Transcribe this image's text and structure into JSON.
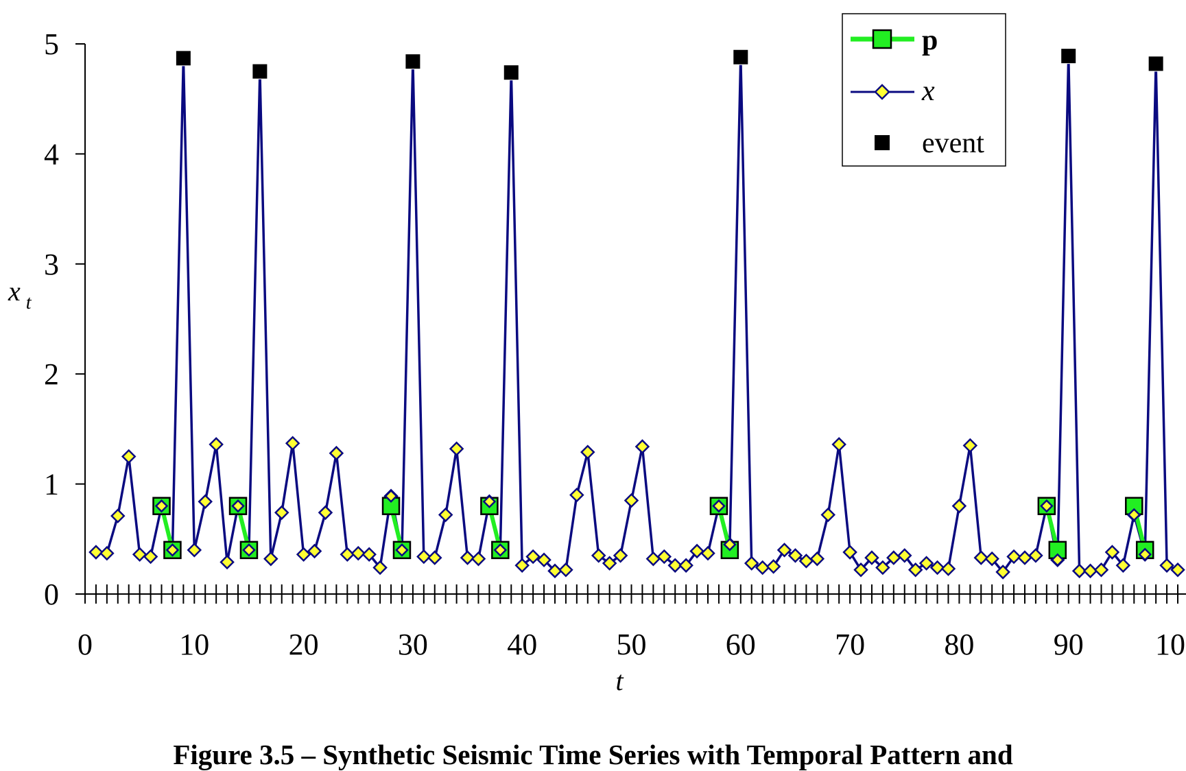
{
  "caption": "Figure 3.5 – Synthetic Seismic Time Series with Temporal Pattern and",
  "chart_data": {
    "type": "line",
    "xlabel": "t",
    "ylabel": "x",
    "ylabel_subscript": "t",
    "xlim": [
      0,
      100
    ],
    "ylim": [
      0,
      5
    ],
    "x_ticks": [
      0,
      10,
      20,
      30,
      40,
      50,
      60,
      70,
      80,
      90,
      100
    ],
    "y_ticks": [
      0,
      1,
      2,
      3,
      4,
      5
    ],
    "x_tick_labels": [
      "0",
      "10",
      "20",
      "30",
      "40",
      "50",
      "60",
      "70",
      "80",
      "90",
      "100"
    ],
    "y_tick_labels": [
      "0",
      "1",
      "2",
      "3",
      "4",
      "5"
    ],
    "minor_x_ticks_every": 1,
    "grid": false,
    "legend_position": "top-right",
    "colors": {
      "x_line": "#0a0a80",
      "x_marker": "#ffff33",
      "p": "#22ee22",
      "event": "#000000"
    },
    "series": [
      {
        "name": "x",
        "style": "line-diamond",
        "x": [
          1,
          2,
          3,
          4,
          5,
          6,
          7,
          8,
          9,
          10,
          11,
          12,
          13,
          14,
          15,
          16,
          17,
          18,
          19,
          20,
          21,
          22,
          23,
          24,
          25,
          26,
          27,
          28,
          29,
          30,
          31,
          32,
          33,
          34,
          35,
          36,
          37,
          38,
          39,
          40,
          41,
          42,
          43,
          44,
          45,
          46,
          47,
          48,
          49,
          50,
          51,
          52,
          53,
          54,
          55,
          56,
          57,
          58,
          59,
          60,
          61,
          62,
          63,
          64,
          65,
          66,
          67,
          68,
          69,
          70,
          71,
          72,
          73,
          74,
          75,
          76,
          77,
          78,
          79,
          80,
          81,
          82,
          83,
          84,
          85,
          86,
          87,
          88,
          89,
          90,
          91,
          92,
          93,
          94,
          95,
          96,
          97,
          98,
          99,
          100
        ],
        "values": [
          0.38,
          0.37,
          0.71,
          1.25,
          0.36,
          0.34,
          0.8,
          0.4,
          4.87,
          0.4,
          0.84,
          1.36,
          0.29,
          0.8,
          0.4,
          4.75,
          0.32,
          0.74,
          1.37,
          0.36,
          0.39,
          0.74,
          1.28,
          0.36,
          0.37,
          0.36,
          0.24,
          0.89,
          0.4,
          4.84,
          0.34,
          0.33,
          0.72,
          1.32,
          0.33,
          0.32,
          0.84,
          0.4,
          4.74,
          0.26,
          0.34,
          0.31,
          0.21,
          0.22,
          0.9,
          1.29,
          0.35,
          0.28,
          0.35,
          0.85,
          1.34,
          0.32,
          0.34,
          0.26,
          0.26,
          0.39,
          0.37,
          0.8,
          0.45,
          4.88,
          0.28,
          0.24,
          0.25,
          0.4,
          0.35,
          0.3,
          0.32,
          0.72,
          1.36,
          0.38,
          0.22,
          0.33,
          0.24,
          0.33,
          0.35,
          0.22,
          0.28,
          0.24,
          0.23,
          0.8,
          1.35,
          0.33,
          0.32,
          0.2,
          0.34,
          0.33,
          0.35,
          0.8,
          0.31,
          4.89,
          0.21,
          0.21,
          0.22,
          0.38,
          0.26,
          0.72,
          0.36,
          4.82,
          0.26,
          0.22
        ]
      },
      {
        "name": "p",
        "style": "line-square",
        "segments": [
          {
            "x": [
              7,
              8
            ],
            "values": [
              0.8,
              0.4
            ]
          },
          {
            "x": [
              14,
              15
            ],
            "values": [
              0.8,
              0.4
            ]
          },
          {
            "x": [
              28,
              29
            ],
            "values": [
              0.8,
              0.4
            ]
          },
          {
            "x": [
              37,
              38
            ],
            "values": [
              0.8,
              0.4
            ]
          },
          {
            "x": [
              58,
              59
            ],
            "values": [
              0.8,
              0.4
            ]
          },
          {
            "x": [
              88,
              89
            ],
            "values": [
              0.8,
              0.4
            ]
          },
          {
            "x": [
              96,
              97
            ],
            "values": [
              0.8,
              0.4
            ]
          }
        ]
      },
      {
        "name": "event",
        "style": "square-marker",
        "x": [
          9,
          16,
          30,
          39,
          60,
          90,
          98
        ],
        "values": [
          4.87,
          4.75,
          4.84,
          4.74,
          4.88,
          4.89,
          4.82
        ]
      }
    ]
  }
}
